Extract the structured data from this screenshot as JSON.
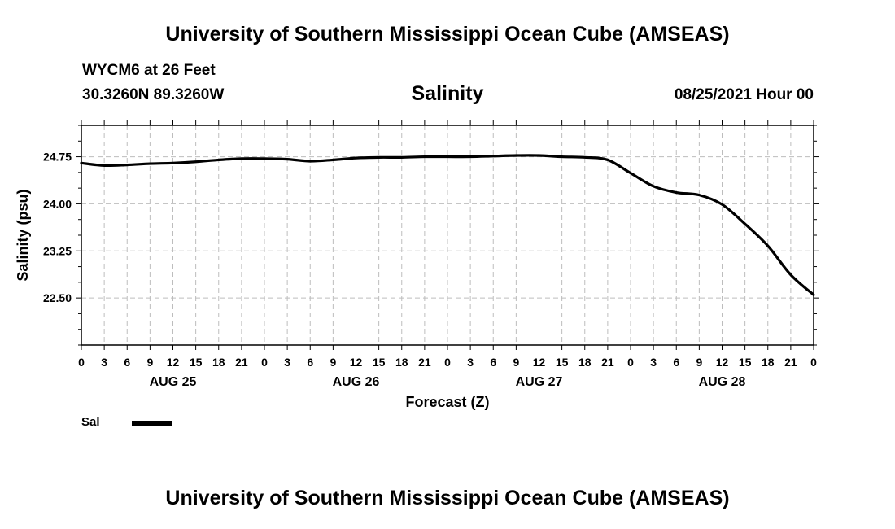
{
  "header": {
    "title": "University of Southern Mississippi Ocean Cube (AMSEAS)",
    "station": "WYCM6 at 26 Feet",
    "coords": "30.3260N  89.3260W",
    "chart_title": "Salinity",
    "datetime": "08/25/2021 Hour 00"
  },
  "footer": {
    "title": "University of Southern Mississippi Ocean Cube (AMSEAS)"
  },
  "legend": {
    "label": "Sal",
    "color": "#000000"
  },
  "chart_data": {
    "type": "line",
    "title": "Salinity",
    "xlabel": "Forecast (Z)",
    "ylabel": "Salinity (psu)",
    "xlim": [
      0,
      96
    ],
    "ylim": [
      21.75,
      25.25
    ],
    "grid": true,
    "yticks": [
      22.5,
      23.25,
      24.0,
      24.75
    ],
    "ytick_labels": [
      "22.50",
      "23.25",
      "24.00",
      "24.75"
    ],
    "ytick_minor": [
      21.75,
      22.0,
      22.25,
      22.5,
      22.75,
      23.0,
      23.25,
      23.5,
      23.75,
      24.0,
      24.25,
      24.5,
      24.75,
      25.0,
      25.25
    ],
    "xticks": [
      0,
      3,
      6,
      9,
      12,
      15,
      18,
      21,
      24,
      27,
      30,
      33,
      36,
      39,
      42,
      45,
      48,
      51,
      54,
      57,
      60,
      63,
      66,
      69,
      72,
      75,
      78,
      81,
      84,
      87,
      90,
      93,
      96
    ],
    "xtick_labels": [
      "0",
      "3",
      "6",
      "9",
      "12",
      "15",
      "18",
      "21",
      "0",
      "3",
      "6",
      "9",
      "12",
      "15",
      "18",
      "21",
      "0",
      "3",
      "6",
      "9",
      "12",
      "15",
      "18",
      "21",
      "0",
      "3",
      "6",
      "9",
      "12",
      "15",
      "18",
      "21",
      "0"
    ],
    "day_labels": [
      {
        "x": 12,
        "label": "AUG 25"
      },
      {
        "x": 36,
        "label": "AUG 26"
      },
      {
        "x": 60,
        "label": "AUG 27"
      },
      {
        "x": 84,
        "label": "AUG 28"
      }
    ],
    "series": [
      {
        "name": "Sal",
        "color": "#000000",
        "x": [
          0,
          3,
          6,
          9,
          12,
          15,
          18,
          21,
          24,
          27,
          30,
          33,
          36,
          39,
          42,
          45,
          48,
          51,
          54,
          57,
          60,
          63,
          66,
          69,
          72,
          75,
          78,
          81,
          84,
          87,
          90,
          93,
          96
        ],
        "values": [
          24.65,
          24.61,
          24.62,
          24.64,
          24.65,
          24.67,
          24.7,
          24.72,
          24.72,
          24.71,
          24.68,
          24.7,
          24.73,
          24.74,
          24.74,
          24.75,
          24.75,
          24.75,
          24.76,
          24.77,
          24.77,
          24.75,
          24.74,
          24.7,
          24.49,
          24.28,
          24.18,
          24.14,
          23.99,
          23.68,
          23.33,
          22.87,
          22.55
        ]
      }
    ]
  }
}
